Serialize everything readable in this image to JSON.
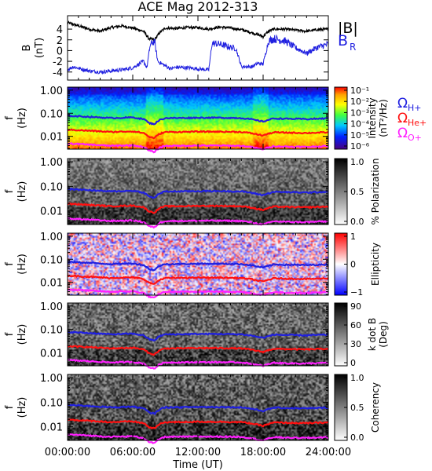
{
  "title": "ACE Mag 2012-313",
  "colors": {
    "black": "#000000",
    "blue": "#2020e0",
    "red": "#ff1010",
    "magenta": "#ff20ff"
  },
  "chart_data": [
    {
      "type": "line",
      "panel": "magnetic-field",
      "ylabel_lines": [
        "B",
        "(nT)"
      ],
      "yticks": [
        "4",
        "2",
        "0",
        "-2",
        "-4"
      ],
      "ylim": [
        -5.5,
        6.5
      ],
      "xlim": [
        0,
        24
      ],
      "series": [
        {
          "name": "|B|",
          "color": "#000000",
          "x": [
            0,
            1,
            2,
            3,
            4,
            5,
            6,
            7,
            7.5,
            8,
            8.5,
            9,
            10,
            11,
            12,
            13,
            14,
            15,
            16,
            17,
            17.5,
            18,
            18.5,
            19,
            20,
            21,
            22,
            23,
            24
          ],
          "values": [
            5.2,
            4.6,
            4.0,
            3.6,
            4.3,
            4.6,
            4.2,
            3.6,
            2.2,
            2.0,
            3.4,
            4.2,
            4.1,
            4.3,
            4.3,
            4.0,
            4.4,
            4.2,
            3.9,
            3.3,
            3.0,
            2.6,
            3.6,
            4.0,
            4.0,
            3.8,
            3.6,
            3.9,
            4.0
          ]
        },
        {
          "name": "B_R",
          "color": "#2020e0",
          "x": [
            0,
            0.5,
            1,
            2,
            3,
            4,
            5,
            6,
            7,
            7.3,
            7.6,
            8,
            8.3,
            8.8,
            9.5,
            10,
            11,
            12,
            13,
            13.3,
            14,
            15,
            15.5,
            16,
            17,
            17.5,
            18,
            18.5,
            19,
            20,
            21,
            22,
            23,
            24
          ],
          "values": [
            -3.6,
            -3.0,
            -3.3,
            -3.8,
            -4.0,
            -3.8,
            -3.6,
            -3.2,
            -2.0,
            -3.2,
            1.0,
            1.8,
            -2.0,
            -2.6,
            -3.4,
            -3.1,
            -3.2,
            -3.4,
            -3.6,
            1.4,
            1.2,
            0.6,
            0.4,
            -3.0,
            -3.0,
            -2.4,
            -2.5,
            1.8,
            2.2,
            1.8,
            0.5,
            -0.5,
            0.6,
            1.2
          ]
        }
      ]
    },
    {
      "type": "heatmap",
      "panel": "intensity",
      "ylabel_lines": [
        "f",
        "(Hz)"
      ],
      "yticks": [
        "1.00",
        "0.10",
        "0.01"
      ],
      "colorbar": {
        "label_lines": [
          "Intensity",
          "(nT²/Hz)"
        ],
        "ticks": [
          "10⁻¹",
          "10⁻²",
          "10⁻³",
          "10⁻⁴",
          "10⁻⁵",
          "10⁻⁶"
        ],
        "scale": "rainbow"
      }
    },
    {
      "type": "heatmap",
      "panel": "polarization",
      "ylabel_lines": [
        "f",
        "(Hz)"
      ],
      "yticks": [
        "1.00",
        "0.10",
        "0.01"
      ],
      "colorbar": {
        "label_lines": [
          "% Polarization"
        ],
        "ticks": [
          "1.0",
          "0.5",
          "0.0"
        ],
        "scale": "gray"
      }
    },
    {
      "type": "heatmap",
      "panel": "ellipticity",
      "ylabel_lines": [
        "f",
        "(Hz)"
      ],
      "yticks": [
        "1.00",
        "0.10",
        "0.01"
      ],
      "colorbar": {
        "label_lines": [
          "Ellipticity"
        ],
        "ticks": [
          "1",
          "0",
          "−1"
        ],
        "scale": "bwr"
      }
    },
    {
      "type": "heatmap",
      "panel": "wave-normal-angle",
      "ylabel_lines": [
        "f",
        "(Hz)"
      ],
      "yticks": [
        "1.00",
        "0.10",
        "0.01"
      ],
      "colorbar": {
        "label_lines": [
          "k dot B",
          "(Deg)"
        ],
        "ticks": [
          "90",
          "60",
          "30",
          "0"
        ],
        "scale": "gray"
      }
    },
    {
      "type": "heatmap",
      "panel": "coherency",
      "ylabel_lines": [
        "f",
        "(Hz)"
      ],
      "yticks": [
        "1.00",
        "0.10",
        "0.01"
      ],
      "colorbar": {
        "label_lines": [
          "Coherency"
        ],
        "ticks": [
          "1.0",
          "0.5",
          "0.0"
        ],
        "scale": "gray"
      }
    }
  ],
  "gyrofrequency": {
    "x": [
      0,
      2,
      4,
      6,
      7,
      7.5,
      8,
      8.5,
      9,
      10,
      12,
      14,
      16,
      17,
      17.5,
      18,
      18.5,
      19,
      20,
      22,
      24
    ],
    "H+": [
      0.078,
      0.07,
      0.062,
      0.066,
      0.056,
      0.038,
      0.034,
      0.052,
      0.062,
      0.062,
      0.064,
      0.064,
      0.062,
      0.054,
      0.048,
      0.044,
      0.052,
      0.06,
      0.058,
      0.056,
      0.06
    ],
    "He+": [
      0.0195,
      0.0175,
      0.0155,
      0.0165,
      0.014,
      0.0095,
      0.0085,
      0.013,
      0.0155,
      0.0155,
      0.016,
      0.016,
      0.0155,
      0.0135,
      0.012,
      0.011,
      0.013,
      0.015,
      0.0145,
      0.014,
      0.015
    ],
    "O+": [
      0.0049,
      0.0044,
      0.0039,
      0.0041,
      0.0035,
      0.0024,
      0.0021,
      0.0033,
      0.0039,
      0.0039,
      0.004,
      0.004,
      0.0039,
      0.0034,
      0.003,
      0.0028,
      0.0033,
      0.0038,
      0.0036,
      0.0035,
      0.0038
    ]
  },
  "legends": {
    "top_B": "|B|",
    "top_BR_main": "B",
    "top_BR_sub": "R",
    "omega": "Ω",
    "H_sub": "H+",
    "He_sub": "He+",
    "O_sub": "O+"
  },
  "xaxis": {
    "ticks": [
      "00:00:00",
      "06:00:00",
      "12:00:00",
      "18:00:00",
      "24:00:00"
    ],
    "label": "Time (UT)"
  }
}
